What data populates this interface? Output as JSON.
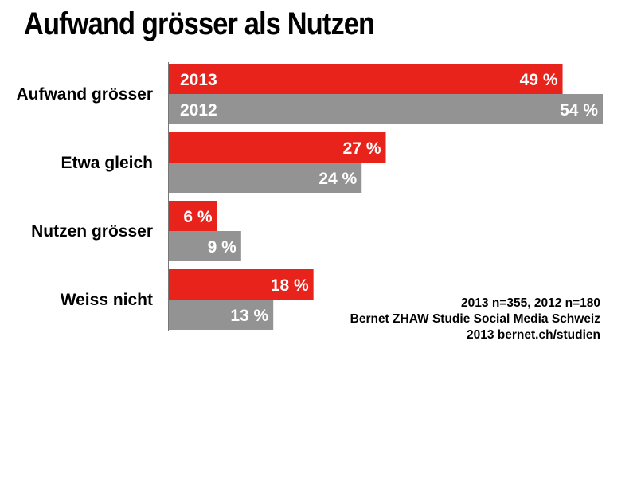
{
  "title": "Aufwand grösser als Nutzen",
  "chart_data": {
    "type": "bar",
    "orientation": "horizontal",
    "title": "Aufwand grösser als Nutzen",
    "categories": [
      "Aufwand grösser",
      "Etwa gleich",
      "Nutzen grösser",
      "Weiss nicht"
    ],
    "series": [
      {
        "name": "2013",
        "values": [
          49,
          27,
          6,
          18
        ],
        "color": "#e8231b"
      },
      {
        "name": "2012",
        "values": [
          54,
          24,
          9,
          13
        ],
        "color": "#939393"
      }
    ],
    "value_suffix": " %",
    "xlim": [
      0,
      54
    ],
    "grid": false
  },
  "source_note": {
    "line1": "2013 n=355, 2012 n=180",
    "line2": "Bernet ZHAW Studie Social Media Schweiz",
    "line3": "2013 bernet.ch/studien"
  }
}
